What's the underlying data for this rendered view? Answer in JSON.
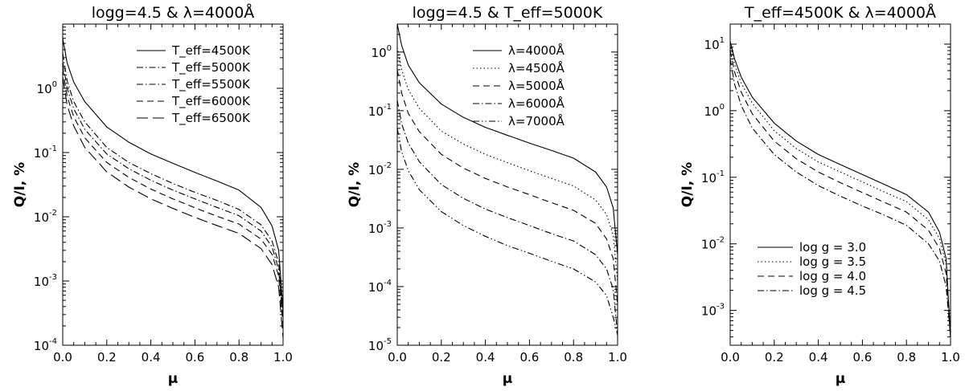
{
  "chart_data": [
    {
      "type": "line",
      "title": "logg=4.5 & λ=4000Å",
      "xlabel": "μ",
      "ylabel": "Q/I, %",
      "xlim": [
        0.0,
        1.0
      ],
      "ylim": [
        0.0001,
        10
      ],
      "yscale": "log",
      "xticks": [
        "0.0",
        "0.2",
        "0.4",
        "0.6",
        "0.8",
        "1.0"
      ],
      "yticks": [
        {
          "base": "10",
          "exp": "-4"
        },
        {
          "base": "10",
          "exp": "-3"
        },
        {
          "base": "10",
          "exp": "-2"
        },
        {
          "base": "10",
          "exp": "-1"
        },
        {
          "base": "10",
          "exp": "0"
        }
      ],
      "legend_position": "top-right",
      "series": [
        {
          "name": "T_eff=4500K",
          "dash": "solid",
          "x": [
            0.0,
            0.02,
            0.05,
            0.1,
            0.2,
            0.3,
            0.4,
            0.5,
            0.6,
            0.7,
            0.8,
            0.9,
            0.95,
            0.98,
            1.0
          ],
          "y": [
            6.0,
            2.5,
            1.25,
            0.62,
            0.25,
            0.145,
            0.095,
            0.068,
            0.049,
            0.036,
            0.026,
            0.014,
            0.0072,
            0.003,
            0.00035
          ]
        },
        {
          "name": "T_eff=5000K",
          "dash": "dash-dot",
          "x": [
            0.0,
            0.02,
            0.05,
            0.1,
            0.2,
            0.3,
            0.4,
            0.5,
            0.6,
            0.7,
            0.8,
            0.9,
            0.95,
            0.98,
            1.0
          ],
          "y": [
            3.5,
            1.3,
            0.62,
            0.3,
            0.12,
            0.07,
            0.047,
            0.033,
            0.024,
            0.018,
            0.013,
            0.0075,
            0.0042,
            0.0019,
            0.0003
          ]
        },
        {
          "name": "T_eff=5500K",
          "dash": "dash-dot",
          "x": [
            0.0,
            0.02,
            0.05,
            0.1,
            0.2,
            0.3,
            0.4,
            0.5,
            0.6,
            0.7,
            0.8,
            0.9,
            0.95,
            0.98,
            1.0
          ],
          "y": [
            2.6,
            1.0,
            0.48,
            0.23,
            0.095,
            0.056,
            0.037,
            0.026,
            0.019,
            0.014,
            0.0104,
            0.006,
            0.0034,
            0.0015,
            0.00025
          ]
        },
        {
          "name": "T_eff=6000K",
          "dash": "dashed",
          "x": [
            0.0,
            0.02,
            0.05,
            0.1,
            0.2,
            0.3,
            0.4,
            0.5,
            0.6,
            0.7,
            0.8,
            0.9,
            0.95,
            0.98,
            1.0
          ],
          "y": [
            2.0,
            0.75,
            0.36,
            0.17,
            0.07,
            0.041,
            0.027,
            0.019,
            0.0138,
            0.0102,
            0.0077,
            0.0045,
            0.0026,
            0.0012,
            0.0002
          ]
        },
        {
          "name": "T_eff=6500K",
          "dash": "long-dash",
          "x": [
            0.0,
            0.02,
            0.05,
            0.1,
            0.2,
            0.3,
            0.4,
            0.5,
            0.6,
            0.7,
            0.8,
            0.9,
            0.95,
            0.98,
            1.0
          ],
          "y": [
            1.5,
            0.55,
            0.26,
            0.12,
            0.05,
            0.029,
            0.019,
            0.0135,
            0.0098,
            0.0073,
            0.0055,
            0.0032,
            0.0018,
            0.0008,
            0.00013
          ]
        }
      ]
    },
    {
      "type": "line",
      "title": "logg=4.5 & T_eff=5000K",
      "xlabel": "μ",
      "ylabel": "Q/I, %",
      "xlim": [
        0.0,
        1.0
      ],
      "ylim": [
        1e-05,
        3
      ],
      "yscale": "log",
      "xticks": [
        "0.0",
        "0.2",
        "0.4",
        "0.6",
        "0.8",
        "1.0"
      ],
      "yticks": [
        {
          "base": "10",
          "exp": "-5"
        },
        {
          "base": "10",
          "exp": "-4"
        },
        {
          "base": "10",
          "exp": "-3"
        },
        {
          "base": "10",
          "exp": "-2"
        },
        {
          "base": "10",
          "exp": "-1"
        },
        {
          "base": "10",
          "exp": "0"
        }
      ],
      "legend_position": "top-right",
      "series": [
        {
          "name": "λ=4000Å",
          "dash": "solid",
          "x": [
            0.0,
            0.02,
            0.05,
            0.1,
            0.2,
            0.3,
            0.4,
            0.5,
            0.6,
            0.7,
            0.8,
            0.9,
            0.95,
            0.98,
            1.0
          ],
          "y": [
            3.0,
            1.3,
            0.6,
            0.3,
            0.13,
            0.077,
            0.052,
            0.038,
            0.028,
            0.021,
            0.0155,
            0.009,
            0.005,
            0.0022,
            0.00035
          ]
        },
        {
          "name": "λ=4500Å",
          "dash": "dotted",
          "x": [
            0.0,
            0.02,
            0.05,
            0.1,
            0.2,
            0.3,
            0.4,
            0.5,
            0.6,
            0.7,
            0.8,
            0.9,
            0.95,
            0.98,
            1.0
          ],
          "y": [
            1.2,
            0.5,
            0.23,
            0.11,
            0.045,
            0.027,
            0.018,
            0.013,
            0.0095,
            0.007,
            0.0052,
            0.003,
            0.0017,
            0.00075,
            0.00012
          ]
        },
        {
          "name": "λ=5000Å",
          "dash": "dashed",
          "x": [
            0.0,
            0.02,
            0.05,
            0.1,
            0.2,
            0.3,
            0.4,
            0.5,
            0.6,
            0.7,
            0.8,
            0.9,
            0.95,
            0.98,
            1.0
          ],
          "y": [
            0.5,
            0.2,
            0.09,
            0.044,
            0.018,
            0.0105,
            0.007,
            0.005,
            0.0037,
            0.0027,
            0.002,
            0.0012,
            0.00065,
            0.0003,
            5e-05
          ]
        },
        {
          "name": "λ=6000Å",
          "dash": "dash-dot",
          "x": [
            0.0,
            0.02,
            0.05,
            0.1,
            0.2,
            0.3,
            0.4,
            0.5,
            0.6,
            0.7,
            0.8,
            0.9,
            0.95,
            0.98,
            1.0
          ],
          "y": [
            0.15,
            0.06,
            0.028,
            0.0135,
            0.0055,
            0.0032,
            0.0021,
            0.0015,
            0.0011,
            0.0008,
            0.0006,
            0.00035,
            0.0002,
            9e-05,
            1.5e-05
          ]
        },
        {
          "name": "λ=7000Å",
          "dash": "dash-dot-dot",
          "x": [
            0.0,
            0.02,
            0.05,
            0.1,
            0.2,
            0.3,
            0.4,
            0.5,
            0.6,
            0.7,
            0.8,
            0.9,
            0.95,
            0.98,
            1.0
          ],
          "y": [
            0.05,
            0.02,
            0.0095,
            0.0045,
            0.0019,
            0.0011,
            0.00072,
            0.0005,
            0.00037,
            0.00027,
            0.0002,
            0.00012,
            7e-05,
            3e-05,
            1.5e-05
          ]
        }
      ]
    },
    {
      "type": "line",
      "title": "T_eff=4500K & λ=4000Å",
      "xlabel": "μ",
      "ylabel": "Q/I, %",
      "xlim": [
        0.0,
        1.0
      ],
      "ylim": [
        0.0003,
        20
      ],
      "yscale": "log",
      "xticks": [
        "0.0",
        "0.2",
        "0.4",
        "0.6",
        "0.8",
        "1.0"
      ],
      "yticks": [
        {
          "base": "10",
          "exp": "-3"
        },
        {
          "base": "10",
          "exp": "-2"
        },
        {
          "base": "10",
          "exp": "-1"
        },
        {
          "base": "10",
          "exp": "0"
        },
        {
          "base": "10",
          "exp": "1"
        }
      ],
      "legend_position": "bottom-left",
      "series": [
        {
          "name": "log g = 3.0",
          "dash": "solid",
          "x": [
            0.0,
            0.02,
            0.05,
            0.1,
            0.2,
            0.3,
            0.4,
            0.5,
            0.6,
            0.7,
            0.8,
            0.9,
            0.95,
            0.98,
            1.0
          ],
          "y": [
            11.0,
            6.0,
            3.2,
            1.6,
            0.65,
            0.35,
            0.22,
            0.155,
            0.11,
            0.078,
            0.055,
            0.03,
            0.015,
            0.006,
            0.0004
          ]
        },
        {
          "name": "log g = 3.5",
          "dash": "dotted",
          "x": [
            0.0,
            0.02,
            0.05,
            0.1,
            0.2,
            0.3,
            0.4,
            0.5,
            0.6,
            0.7,
            0.8,
            0.9,
            0.95,
            0.98,
            1.0
          ],
          "y": [
            10.0,
            5.0,
            2.6,
            1.3,
            0.5,
            0.27,
            0.17,
            0.12,
            0.085,
            0.06,
            0.043,
            0.023,
            0.012,
            0.005,
            0.0004
          ]
        },
        {
          "name": "log g = 4.0",
          "dash": "dashed",
          "x": [
            0.0,
            0.02,
            0.05,
            0.1,
            0.2,
            0.3,
            0.4,
            0.5,
            0.6,
            0.7,
            0.8,
            0.9,
            0.95,
            0.98,
            1.0
          ],
          "y": [
            8.0,
            3.8,
            1.9,
            0.9,
            0.35,
            0.19,
            0.12,
            0.083,
            0.059,
            0.042,
            0.03,
            0.016,
            0.0085,
            0.0036,
            0.0004
          ]
        },
        {
          "name": "log g = 4.5",
          "dash": "dash-dot",
          "x": [
            0.0,
            0.02,
            0.05,
            0.1,
            0.2,
            0.3,
            0.4,
            0.5,
            0.6,
            0.7,
            0.8,
            0.9,
            0.95,
            0.98,
            1.0
          ],
          "y": [
            6.0,
            2.5,
            1.2,
            0.55,
            0.22,
            0.12,
            0.075,
            0.052,
            0.037,
            0.027,
            0.019,
            0.01,
            0.0055,
            0.0023,
            0.0004
          ]
        }
      ]
    }
  ]
}
